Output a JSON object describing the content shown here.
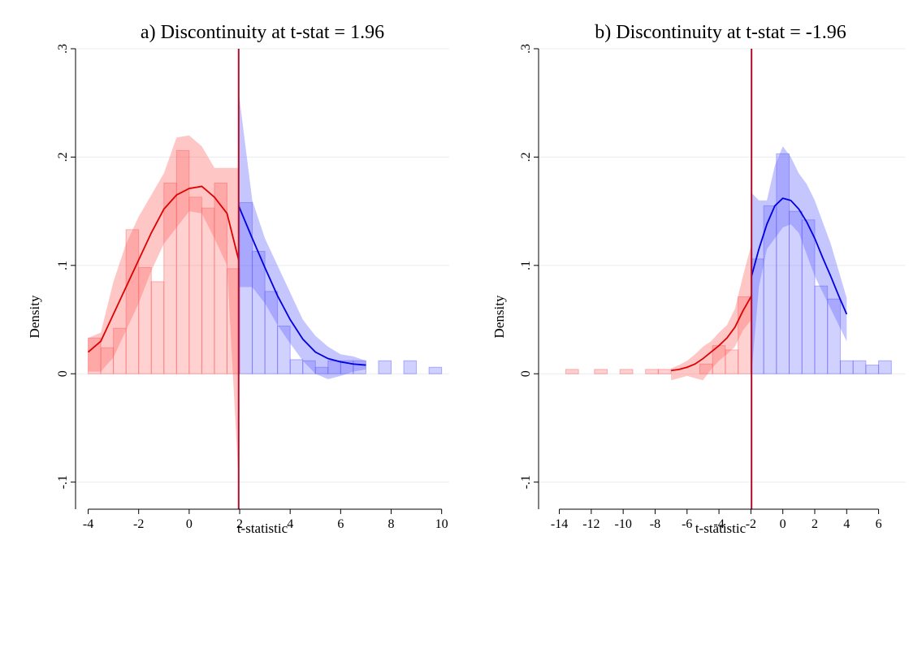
{
  "chart_data": [
    {
      "type": "bar",
      "title": "a) Discontinuity at t-stat = 1.96",
      "xlabel": "t-statistic",
      "ylabel": "Density",
      "xlim": [
        -4.5,
        10.3
      ],
      "ylim": [
        -0.125,
        0.3
      ],
      "xticks": [
        -4,
        -2,
        0,
        2,
        4,
        6,
        8,
        10
      ],
      "xtick_labels": [
        "-4",
        "-2",
        "0",
        "2",
        "4",
        "6",
        "8",
        "10"
      ],
      "yticks": [
        -0.1,
        0,
        0.1,
        0.2,
        0.3
      ],
      "ytick_labels": [
        "-.1",
        "0",
        ".1",
        ".2",
        ".3"
      ],
      "grid": true,
      "cutoff": 1.96,
      "bin_width": 0.5,
      "colors": {
        "left": "#ff5b5b",
        "right": "#5b5bff",
        "cutoff_line": "#b0102c",
        "grid": "#e8edf2"
      },
      "histogram_left": [
        {
          "x": -4.0,
          "value": 0.033
        },
        {
          "x": -3.5,
          "value": 0.024
        },
        {
          "x": -3.0,
          "value": 0.042
        },
        {
          "x": -2.5,
          "value": 0.133
        },
        {
          "x": -2.0,
          "value": 0.098
        },
        {
          "x": -1.5,
          "value": 0.085
        },
        {
          "x": -1.0,
          "value": 0.176
        },
        {
          "x": -0.5,
          "value": 0.206
        },
        {
          "x": 0.0,
          "value": 0.163
        },
        {
          "x": 0.5,
          "value": 0.153
        },
        {
          "x": 1.0,
          "value": 0.176
        },
        {
          "x": 1.5,
          "value": 0.097
        }
      ],
      "histogram_right": [
        {
          "x": 2.0,
          "value": 0.158
        },
        {
          "x": 2.5,
          "value": 0.113
        },
        {
          "x": 3.0,
          "value": 0.076
        },
        {
          "x": 3.5,
          "value": 0.044
        },
        {
          "x": 4.0,
          "value": 0.013
        },
        {
          "x": 4.5,
          "value": 0.012
        },
        {
          "x": 5.0,
          "value": 0.006
        },
        {
          "x": 5.5,
          "value": 0.012
        },
        {
          "x": 6.0,
          "value": 0.012
        },
        {
          "x": 6.5,
          "value": 0.012
        },
        {
          "x": 7.5,
          "value": 0.012
        },
        {
          "x": 8.5,
          "value": 0.012
        },
        {
          "x": 9.5,
          "value": 0.006
        }
      ],
      "fit_left": [
        {
          "x": -4.0,
          "y": 0.02,
          "lo": 0.002,
          "hi": 0.033
        },
        {
          "x": -3.5,
          "y": 0.03,
          "lo": 0.002,
          "hi": 0.038
        },
        {
          "x": -3.0,
          "y": 0.055,
          "lo": 0.015,
          "hi": 0.085
        },
        {
          "x": -2.5,
          "y": 0.08,
          "lo": 0.04,
          "hi": 0.12
        },
        {
          "x": -2.0,
          "y": 0.105,
          "lo": 0.065,
          "hi": 0.145
        },
        {
          "x": -1.5,
          "y": 0.13,
          "lo": 0.095,
          "hi": 0.165
        },
        {
          "x": -1.0,
          "y": 0.152,
          "lo": 0.12,
          "hi": 0.185
        },
        {
          "x": -0.5,
          "y": 0.165,
          "lo": 0.135,
          "hi": 0.218
        },
        {
          "x": 0.0,
          "y": 0.171,
          "lo": 0.15,
          "hi": 0.22
        },
        {
          "x": 0.5,
          "y": 0.173,
          "lo": 0.148,
          "hi": 0.21
        },
        {
          "x": 1.0,
          "y": 0.163,
          "lo": 0.125,
          "hi": 0.19
        },
        {
          "x": 1.5,
          "y": 0.148,
          "lo": 0.1,
          "hi": 0.19
        },
        {
          "x": 1.96,
          "y": 0.105,
          "lo": -0.1,
          "hi": 0.19
        }
      ],
      "fit_right": [
        {
          "x": 1.96,
          "y": 0.155,
          "lo": 0.08,
          "hi": 0.26
        },
        {
          "x": 2.5,
          "y": 0.125,
          "lo": 0.08,
          "hi": 0.16
        },
        {
          "x": 3.0,
          "y": 0.098,
          "lo": 0.065,
          "hi": 0.125
        },
        {
          "x": 3.5,
          "y": 0.072,
          "lo": 0.045,
          "hi": 0.1
        },
        {
          "x": 4.0,
          "y": 0.05,
          "lo": 0.028,
          "hi": 0.075
        },
        {
          "x": 4.5,
          "y": 0.032,
          "lo": 0.012,
          "hi": 0.05
        },
        {
          "x": 5.0,
          "y": 0.02,
          "lo": 0.0,
          "hi": 0.035
        },
        {
          "x": 5.5,
          "y": 0.014,
          "lo": -0.005,
          "hi": 0.025
        },
        {
          "x": 6.0,
          "y": 0.011,
          "lo": -0.002,
          "hi": 0.018
        },
        {
          "x": 6.5,
          "y": 0.009,
          "lo": 0.002,
          "hi": 0.016
        },
        {
          "x": 7.0,
          "y": 0.008,
          "lo": 0.004,
          "hi": 0.012
        }
      ]
    },
    {
      "type": "bar",
      "title": "b) Discontinuity at t-stat = -1.96",
      "xlabel": "t-statistic",
      "ylabel": "Density",
      "xlim": [
        -15.3,
        7.7
      ],
      "ylim": [
        -0.125,
        0.3
      ],
      "xticks": [
        -14,
        -12,
        -10,
        -8,
        -6,
        -4,
        -2,
        0,
        2,
        4,
        6
      ],
      "xtick_labels": [
        "-14",
        "-12",
        "-10",
        "-8",
        "-6",
        "-4",
        "-2",
        "0",
        "2",
        "4",
        "6"
      ],
      "yticks": [
        -0.1,
        0,
        0.1,
        0.2,
        0.3
      ],
      "ytick_labels": [
        "-.1",
        "0",
        ".1",
        ".2",
        ".3"
      ],
      "grid": true,
      "cutoff": -1.96,
      "bin_width": 0.8,
      "colors": {
        "left": "#ff5b5b",
        "right": "#5b5bff",
        "cutoff_line": "#b0102c",
        "grid": "#e8edf2"
      },
      "histogram_left": [
        {
          "x": -13.6,
          "value": 0.004
        },
        {
          "x": -11.8,
          "value": 0.004
        },
        {
          "x": -10.2,
          "value": 0.004
        },
        {
          "x": -8.6,
          "value": 0.004
        },
        {
          "x": -7.8,
          "value": 0.004
        },
        {
          "x": -5.2,
          "value": 0.009
        },
        {
          "x": -4.4,
          "value": 0.026
        },
        {
          "x": -3.6,
          "value": 0.022
        },
        {
          "x": -2.8,
          "value": 0.071
        }
      ],
      "histogram_right": [
        {
          "x": -2.0,
          "value": 0.106
        },
        {
          "x": -1.2,
          "value": 0.155
        },
        {
          "x": -0.4,
          "value": 0.203
        },
        {
          "x": 0.4,
          "value": 0.15
        },
        {
          "x": 1.2,
          "value": 0.142
        },
        {
          "x": 2.0,
          "value": 0.081
        },
        {
          "x": 2.8,
          "value": 0.069
        },
        {
          "x": 3.6,
          "value": 0.012
        },
        {
          "x": 4.4,
          "value": 0.012
        },
        {
          "x": 5.2,
          "value": 0.008
        },
        {
          "x": 6.0,
          "value": 0.012
        }
      ],
      "fit_left": [
        {
          "x": -7.0,
          "y": 0.003,
          "lo": -0.006,
          "hi": 0.005
        },
        {
          "x": -6.5,
          "y": 0.004,
          "lo": -0.004,
          "hi": 0.008
        },
        {
          "x": -6.0,
          "y": 0.006,
          "lo": -0.002,
          "hi": 0.012
        },
        {
          "x": -5.5,
          "y": 0.009,
          "lo": -0.004,
          "hi": 0.018
        },
        {
          "x": -5.0,
          "y": 0.014,
          "lo": -0.006,
          "hi": 0.025
        },
        {
          "x": -4.5,
          "y": 0.02,
          "lo": 0.004,
          "hi": 0.03
        },
        {
          "x": -4.0,
          "y": 0.026,
          "lo": 0.012,
          "hi": 0.038
        },
        {
          "x": -3.5,
          "y": 0.033,
          "lo": 0.018,
          "hi": 0.045
        },
        {
          "x": -3.0,
          "y": 0.043,
          "lo": 0.025,
          "hi": 0.06
        },
        {
          "x": -2.5,
          "y": 0.058,
          "lo": 0.04,
          "hi": 0.09
        },
        {
          "x": -1.96,
          "y": 0.072,
          "lo": 0.05,
          "hi": 0.12
        }
      ],
      "fit_right": [
        {
          "x": -1.96,
          "y": 0.09,
          "lo": 0.0,
          "hi": 0.167
        },
        {
          "x": -1.5,
          "y": 0.115,
          "lo": 0.08,
          "hi": 0.16
        },
        {
          "x": -1.0,
          "y": 0.138,
          "lo": 0.115,
          "hi": 0.16
        },
        {
          "x": -0.5,
          "y": 0.155,
          "lo": 0.125,
          "hi": 0.192
        },
        {
          "x": 0.0,
          "y": 0.162,
          "lo": 0.135,
          "hi": 0.21
        },
        {
          "x": 0.5,
          "y": 0.16,
          "lo": 0.138,
          "hi": 0.2
        },
        {
          "x": 1.0,
          "y": 0.152,
          "lo": 0.13,
          "hi": 0.185
        },
        {
          "x": 1.5,
          "y": 0.14,
          "lo": 0.11,
          "hi": 0.175
        },
        {
          "x": 2.0,
          "y": 0.125,
          "lo": 0.09,
          "hi": 0.16
        },
        {
          "x": 2.5,
          "y": 0.107,
          "lo": 0.075,
          "hi": 0.14
        },
        {
          "x": 3.0,
          "y": 0.09,
          "lo": 0.06,
          "hi": 0.12
        },
        {
          "x": 3.5,
          "y": 0.072,
          "lo": 0.045,
          "hi": 0.095
        },
        {
          "x": 4.0,
          "y": 0.055,
          "lo": 0.03,
          "hi": 0.07
        }
      ]
    }
  ]
}
